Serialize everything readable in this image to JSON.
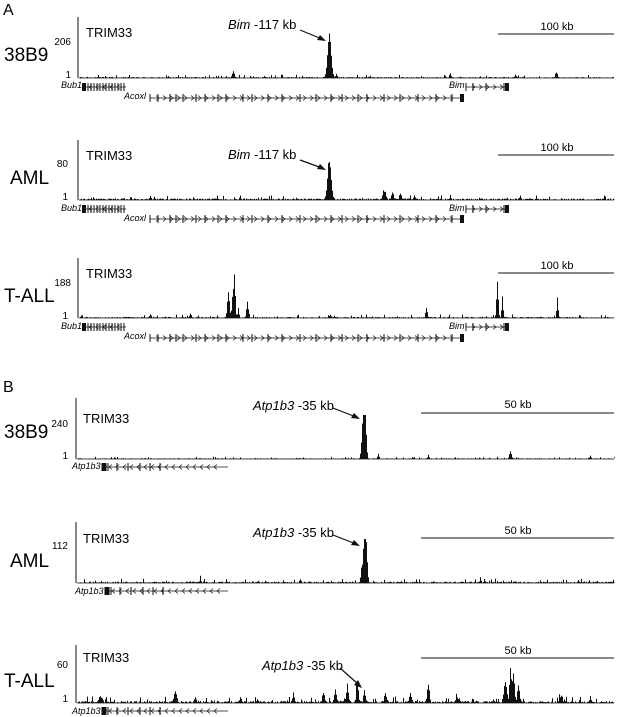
{
  "panels": [
    {
      "letter": "A",
      "scale_label": "100 kb",
      "annotation_gene": "Bim",
      "annotation_suffix": " -117 kb",
      "tracks": [
        {
          "sample": "38B9",
          "factor": "TRIM33",
          "ymax": "206",
          "ymin": "1",
          "show_annotation": true
        },
        {
          "sample": "AML",
          "factor": "TRIM33",
          "ymax": "80",
          "ymin": "1",
          "show_annotation": true
        },
        {
          "sample": "T-ALL",
          "factor": "TRIM33",
          "ymax": "188",
          "ymin": "1",
          "show_annotation": false
        }
      ],
      "genes": [
        "Bub1",
        "Acoxl",
        "Bim"
      ]
    },
    {
      "letter": "B",
      "scale_label": "50 kb",
      "annotation_gene": "Atp1b3",
      "annotation_suffix": " -35 kb",
      "tracks": [
        {
          "sample": "38B9",
          "factor": "TRIM33",
          "ymax": "240",
          "ymin": "1",
          "show_annotation": true
        },
        {
          "sample": "AML",
          "factor": "TRIM33",
          "ymax": "112",
          "ymin": "1",
          "show_annotation": true
        },
        {
          "sample": "T-ALL",
          "factor": "TRIM33",
          "ymax": "60",
          "ymin": "1",
          "show_annotation": true
        }
      ],
      "genes": [
        "Atp1b3"
      ]
    }
  ],
  "colors": {
    "signal": "#111111",
    "axis": "#111111"
  }
}
